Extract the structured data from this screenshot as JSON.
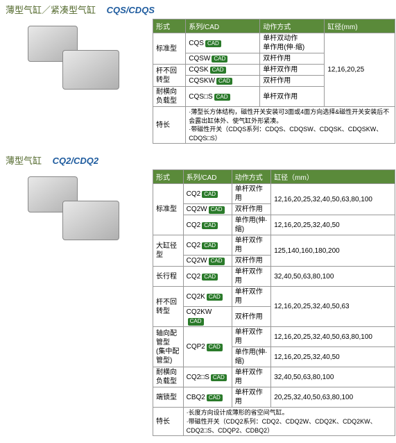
{
  "s1": {
    "title_cn": "薄型气缸／紧凑型气缸",
    "title_model": "CQS/CDQS",
    "headers": [
      "形式",
      "系列/CAD",
      "动作方式",
      "缸径(mm)"
    ],
    "bore": "12,16,20,25",
    "rows": [
      {
        "type": "标准型",
        "series": "CQS",
        "action": "单杆双动作\n单作用(伸·缩)"
      },
      {
        "type": "",
        "series": "CQSW",
        "action": "双杆作用"
      },
      {
        "type": "杆不回转型",
        "series": "CQSK",
        "action": "单杆双作用"
      },
      {
        "type": "",
        "series": "CQSKW",
        "action": "双杆作用"
      },
      {
        "type": "耐横向负载型",
        "series": "CQS□S",
        "action": "单杆双作用"
      }
    ],
    "feat_label": "特长",
    "feat": "·薄型长方体结构，磁性开关安装可3面或4面方向选择&磁性开关安装后不会露出缸体外、使气缸外形紧凑。\n·带磁性开关（CDQS系列：CDQS、CDQSW、CDQSK、CDQSKW、CDQS□S）"
  },
  "s2": {
    "title_cn": "薄型气缸",
    "title_model": "CQ2/CDQ2",
    "headers": [
      "形式",
      "系列/CAD",
      "动作方式",
      "缸径（mm）"
    ],
    "rows": [
      {
        "type": "标准型",
        "series": "CQ2",
        "action": "单杆双作用",
        "bore": "12,16,20,25,32,40,50,63,80,100"
      },
      {
        "type": "",
        "series": "CQ2W",
        "action": "双杆作用",
        "bore": ""
      },
      {
        "type": "",
        "series": "CQ2",
        "action": "单作用(伸·缩)",
        "bore": "12,16,20,25,32,40,50"
      },
      {
        "type": "大缸径型",
        "series": "CQ2",
        "action": "单杆双作用",
        "bore": "125,140,160,180,200"
      },
      {
        "type": "",
        "series": "CQ2W",
        "action": "双杆作用",
        "bore": ""
      },
      {
        "type": "长行程",
        "series": "CQ2",
        "action": "单杆双作用",
        "bore": "32,40,50,63,80,100"
      },
      {
        "type": "杆不回转型",
        "series": "CQ2K",
        "action": "单杆双作用",
        "bore": "12,16,20,25,32,40,50,63"
      },
      {
        "type": "",
        "series": "CQ2KW",
        "action": "双杆作用",
        "bore": ""
      },
      {
        "type": "轴向配管型\n(集中配管型)",
        "series": "CQP2",
        "action": "单杆双作用",
        "bore": "12,16,20,25,32,40,50,63,80,100"
      },
      {
        "type": "",
        "series": "",
        "action": "单作用(伸·缩)",
        "bore": "12,16,20,25,32,40,50"
      },
      {
        "type": "耐横向负载型",
        "series": "CQ2□S",
        "action": "单杆双作用",
        "bore": "32,40,50,63,80,100"
      },
      {
        "type": "端锁型",
        "series": "CBQ2",
        "action": "单杆双作用",
        "bore": "20,25,32,40,50,63,80,100"
      }
    ],
    "feat_label": "特长",
    "feat": "·长度方向设计成薄形的省空间气缸。\n·带磁性开关（CDQ2系列：CDQ2、CDQ2W、CDQ2K、CDQ2KW、CDQ2□S、CDQP2、CDBQ2）"
  },
  "cad_label": "CAD"
}
